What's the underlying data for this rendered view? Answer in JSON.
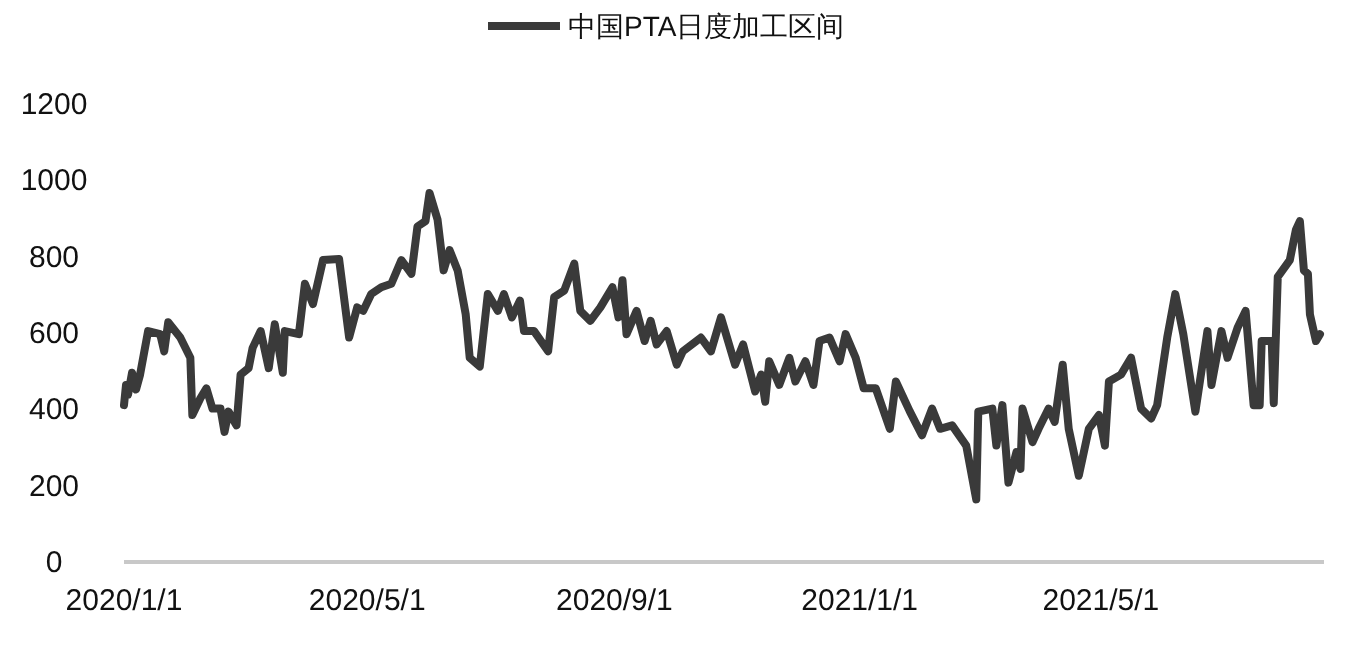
{
  "chart_data": {
    "type": "line",
    "legend": "top",
    "marker": "none",
    "line_style": "solid",
    "grid": false,
    "ylim": [
      0,
      1200
    ],
    "yticks": [
      0,
      200,
      400,
      600,
      800,
      1000,
      1200
    ],
    "xlim": [
      "2020-01-01",
      "2021-08-20"
    ],
    "xticks": [
      {
        "value": "2020-01-01",
        "label": "2020/1/1"
      },
      {
        "value": "2020-05-01",
        "label": "2020/5/1"
      },
      {
        "value": "2020-09-01",
        "label": "2020/9/1"
      },
      {
        "value": "2021-01-01",
        "label": "2021/1/1"
      },
      {
        "value": "2021-05-01",
        "label": "2021/5/1"
      }
    ],
    "x": [
      "2020-01-01",
      "2020-01-02",
      "2020-01-03",
      "2020-01-05",
      "2020-01-07",
      "2020-01-09",
      "2020-01-13",
      "2020-01-19",
      "2020-01-21",
      "2020-01-23",
      "2020-01-29",
      "2020-02-03",
      "2020-02-04",
      "2020-02-08",
      "2020-02-11",
      "2020-02-14",
      "2020-02-18",
      "2020-02-20",
      "2020-02-22",
      "2020-02-26",
      "2020-02-28",
      "2020-03-03",
      "2020-03-05",
      "2020-03-09",
      "2020-03-13",
      "2020-03-16",
      "2020-03-20",
      "2020-03-21",
      "2020-03-28",
      "2020-03-31",
      "2020-04-04",
      "2020-04-09",
      "2020-04-17",
      "2020-04-22",
      "2020-04-26",
      "2020-04-29",
      "2020-05-03",
      "2020-05-08",
      "2020-05-13",
      "2020-05-18",
      "2020-05-23",
      "2020-05-26",
      "2020-05-30",
      "2020-06-01",
      "2020-06-05",
      "2020-06-08",
      "2020-06-11",
      "2020-06-15",
      "2020-06-19",
      "2020-06-21",
      "2020-06-26",
      "2020-06-30",
      "2020-07-05",
      "2020-07-08",
      "2020-07-12",
      "2020-07-16",
      "2020-07-18",
      "2020-07-23",
      "2020-07-30",
      "2020-08-02",
      "2020-08-07",
      "2020-08-12",
      "2020-08-15",
      "2020-08-20",
      "2020-08-25",
      "2020-08-31",
      "2020-09-03",
      "2020-09-05",
      "2020-09-07",
      "2020-09-12",
      "2020-09-16",
      "2020-09-19",
      "2020-09-22",
      "2020-09-27",
      "2020-10-02",
      "2020-10-05",
      "2020-10-14",
      "2020-10-19",
      "2020-10-24",
      "2020-10-27",
      "2020-10-31",
      "2020-11-04",
      "2020-11-10",
      "2020-11-13",
      "2020-11-15",
      "2020-11-17",
      "2020-11-22",
      "2020-11-27",
      "2020-11-30",
      "2020-12-05",
      "2020-12-09",
      "2020-12-12",
      "2020-12-17",
      "2020-12-22",
      "2020-12-25",
      "2020-12-30",
      "2021-01-03",
      "2021-01-09",
      "2021-01-16",
      "2021-01-19",
      "2021-01-26",
      "2021-02-01",
      "2021-02-06",
      "2021-02-10",
      "2021-02-16",
      "2021-02-23",
      "2021-02-28",
      "2021-03-01",
      "2021-03-08",
      "2021-03-10",
      "2021-03-13",
      "2021-03-16",
      "2021-03-20",
      "2021-03-22",
      "2021-03-23",
      "2021-03-28",
      "2021-03-31",
      "2021-04-05",
      "2021-04-08",
      "2021-04-12",
      "2021-04-15",
      "2021-04-20",
      "2021-04-25",
      "2021-04-30",
      "2021-05-03",
      "2021-05-05",
      "2021-05-11",
      "2021-05-16",
      "2021-05-21",
      "2021-05-26",
      "2021-05-29",
      "2021-06-03",
      "2021-06-07",
      "2021-06-11",
      "2021-06-17",
      "2021-06-23",
      "2021-06-25",
      "2021-06-30",
      "2021-07-03",
      "2021-07-08",
      "2021-07-12",
      "2021-07-16",
      "2021-07-19",
      "2021-07-20",
      "2021-07-25",
      "2021-07-26",
      "2021-07-28",
      "2021-08-03",
      "2021-08-06",
      "2021-08-08",
      "2021-08-10",
      "2021-08-12",
      "2021-08-13",
      "2021-08-16",
      "2021-08-18"
    ],
    "series": [
      {
        "name": "中国PTA日度加工区间",
        "color": "#3a3a3a",
        "values": [
          411,
          464,
          438,
          496,
          452,
          491,
          605,
          597,
          552,
          628,
          588,
          535,
          385,
          429,
          455,
          402,
          402,
          341,
          394,
          358,
          491,
          508,
          561,
          605,
          508,
          623,
          496,
          605,
          597,
          729,
          676,
          791,
          794,
          588,
          667,
          658,
          702,
          720,
          729,
          791,
          755,
          879,
          893,
          967,
          897,
          764,
          817,
          764,
          649,
          535,
          512,
          702,
          658,
          702,
          641,
          685,
          605,
          605,
          552,
          694,
          711,
          782,
          658,
          632,
          667,
          720,
          641,
          738,
          597,
          658,
          579,
          632,
          570,
          605,
          517,
          552,
          588,
          552,
          641,
          588,
          517,
          570,
          447,
          491,
          420,
          526,
          464,
          535,
          473,
          526,
          464,
          579,
          588,
          526,
          597,
          535,
          455,
          455,
          349,
          473,
          394,
          332,
          402,
          349,
          358,
          305,
          164,
          394,
          402,
          305,
          411,
          208,
          288,
          244,
          402,
          314,
          349,
          402,
          367,
          517,
          349,
          226,
          349,
          385,
          305,
          473,
          491,
          535,
          402,
          376,
          411,
          588,
          702,
          597,
          394,
          605,
          464,
          605,
          535,
          614,
          658,
          411,
          411,
          579,
          579,
          416,
          747,
          791,
          870,
          893,
          764,
          755,
          649,
          579,
          597
        ]
      }
    ]
  }
}
